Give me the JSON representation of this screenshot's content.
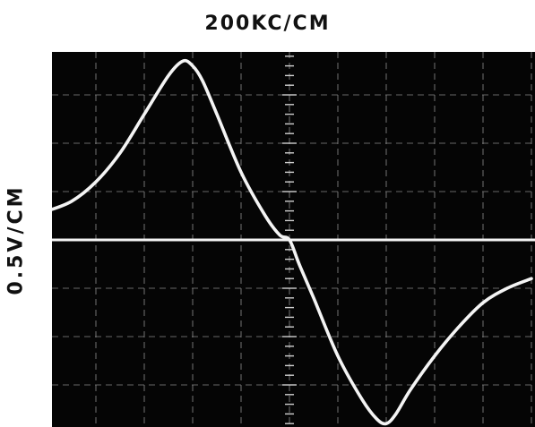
{
  "x_scale_label": "200KC/CM",
  "y_scale_label": "0.5V/CM",
  "colors": {
    "screen": "#050505",
    "graticule": "#8a8a8a",
    "trace": "#f4f4f4",
    "label": "#111111"
  },
  "chart_data": {
    "type": "line",
    "title": "",
    "xlabel": "200KC/CM",
    "ylabel": "0.5V/CM",
    "x_unit": "cm",
    "y_unit": "cm",
    "xlim": [
      -5.2,
      5.1
    ],
    "ylim": [
      -3.9,
      4.0
    ],
    "grid": true,
    "series": [
      {
        "name": "",
        "x": [
          -5.0,
          -4.5,
          -4.0,
          -3.5,
          -3.0,
          -2.5,
          -2.2,
          -2.0,
          -1.8,
          -1.5,
          -1.0,
          -0.5,
          -0.2,
          0.0,
          0.2,
          0.5,
          1.0,
          1.5,
          1.8,
          2.0,
          2.2,
          2.5,
          3.0,
          3.5,
          4.0,
          4.5,
          5.0
        ],
        "values": [
          0.6,
          0.8,
          1.2,
          1.8,
          2.6,
          3.4,
          3.7,
          3.6,
          3.3,
          2.6,
          1.4,
          0.5,
          0.1,
          0.0,
          -0.5,
          -1.2,
          -2.4,
          -3.3,
          -3.7,
          -3.8,
          -3.6,
          -3.1,
          -2.4,
          -1.8,
          -1.3,
          -1.0,
          -0.8
        ]
      },
      {
        "name": "",
        "x": [
          -5.0,
          5.0
        ],
        "values": [
          0.0,
          0.0
        ]
      }
    ]
  }
}
